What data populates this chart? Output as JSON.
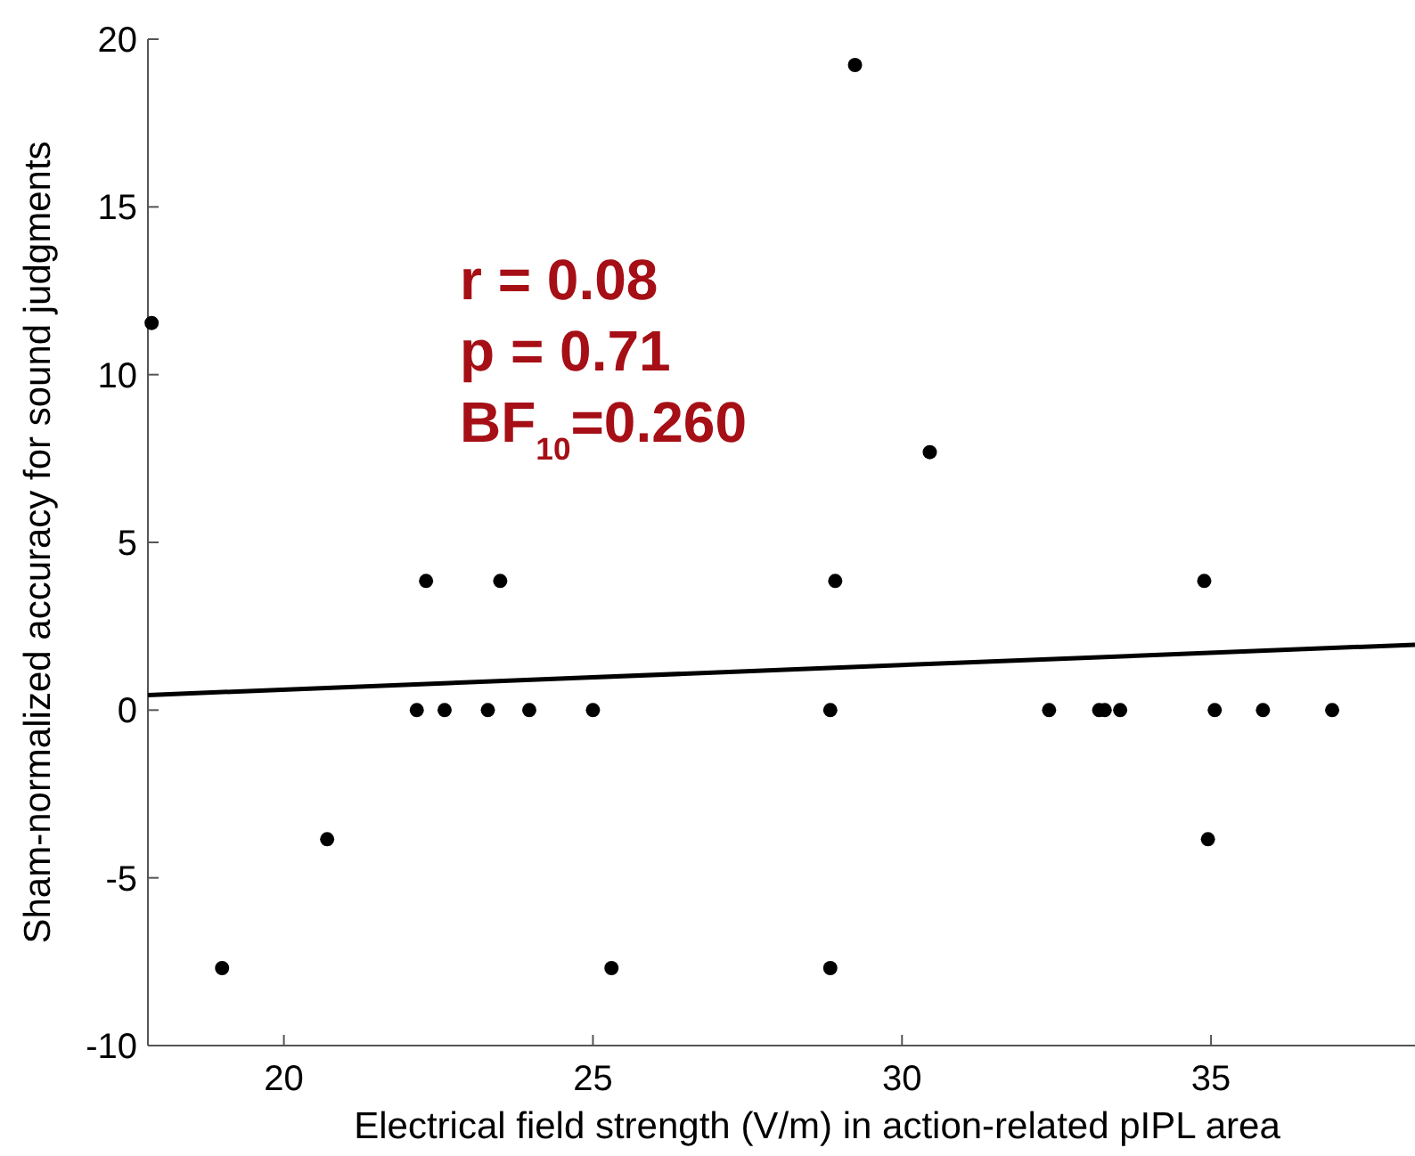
{
  "chart_data": {
    "type": "scatter",
    "xlabel": "Electrical field strength (V/m) in action-related pIPL area",
    "ylabel": "Sham-normalized accuracy for sound judgments",
    "xlim": [
      17.8,
      38.3
    ],
    "xticks": [
      20,
      25,
      30,
      35
    ],
    "ylim": [
      -10,
      20
    ],
    "yticks": [
      -10,
      -5,
      0,
      5,
      10,
      15,
      20
    ],
    "grid": false,
    "marker": "circle",
    "annotations": [
      "r = 0.08",
      "p = 0.71",
      "BF$_{10}$=0.260"
    ],
    "series": [
      {
        "color": "#000000",
        "x": [
          17.86,
          19.0,
          20.7,
          22.15,
          22.3,
          22.6,
          23.3,
          23.5,
          23.97,
          25.0,
          25.3,
          28.84,
          28.84,
          28.92,
          29.24,
          30.45,
          32.38,
          33.19,
          33.28,
          33.53,
          34.89,
          34.95,
          35.06,
          35.84,
          36.96
        ],
        "values": [
          11.54,
          -7.69,
          -3.85,
          0,
          3.85,
          0,
          0,
          3.85,
          0,
          0,
          -7.69,
          0,
          -7.69,
          3.85,
          19.23,
          7.69,
          0,
          0,
          0,
          0,
          3.85,
          -3.85,
          0,
          0,
          0
        ]
      },
      {
        "type": "line",
        "color": "#000000",
        "marker": "none",
        "x": [
          17.8,
          38.3
        ],
        "values": [
          0.45,
          1.95
        ]
      }
    ]
  }
}
